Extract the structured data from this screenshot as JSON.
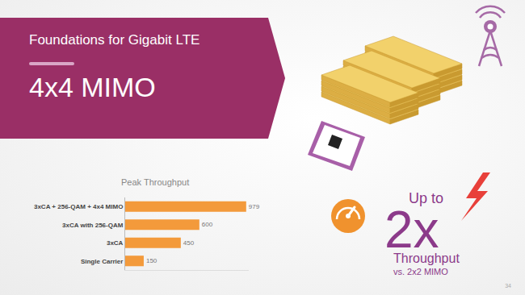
{
  "header": {
    "title": "Foundations for Gigabit LTE",
    "subtitle": "4x4 MIMO"
  },
  "chart_data": {
    "type": "bar",
    "orientation": "horizontal",
    "title": "Peak Throughput",
    "categories": [
      "3xCA + 256-QAM + 4x4 MIMO",
      "3xCA with 256-QAM",
      "3xCA",
      "Single Carrier"
    ],
    "values": [
      979,
      600,
      450,
      150
    ],
    "color": "#f39a3b",
    "xlim": [
      0,
      1000
    ],
    "data_labels": true,
    "tick_labels": "y",
    "grid": false
  },
  "callout": {
    "prefix": "Up to",
    "multiplier": "2x",
    "label": "Throughput",
    "comparison": "vs. 2x2 MIMO"
  },
  "page_number": "34"
}
